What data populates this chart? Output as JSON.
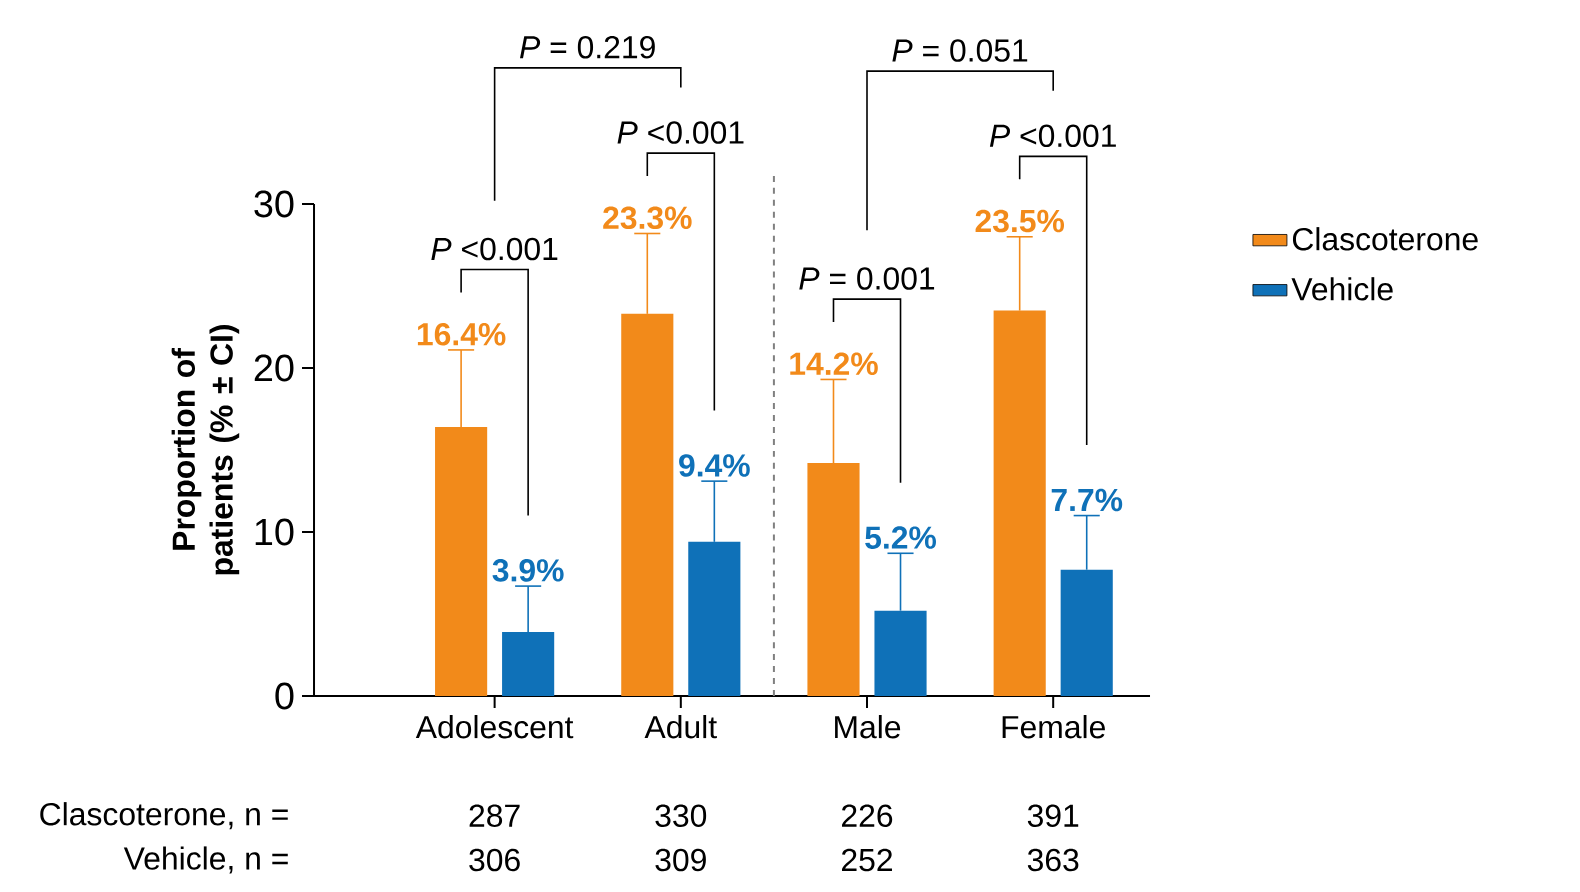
{
  "chart_data": {
    "type": "bar",
    "ylabel": "Proportion of patients (% ± CI)",
    "categories": [
      "Adolescent",
      "Adult",
      "Male",
      "Female"
    ],
    "series": [
      {
        "name": "Clascoterone",
        "color": "#f28a1a",
        "values": [
          16.4,
          23.3,
          14.2,
          23.5
        ],
        "errors": [
          [
            16.4,
            21.1
          ],
          [
            23.3,
            28.2
          ],
          [
            14.2,
            19.3
          ],
          [
            23.5,
            28.0
          ]
        ],
        "value_labels": [
          "16.4%",
          "23.3%",
          "14.2%",
          "23.5%"
        ]
      },
      {
        "name": "Vehicle",
        "color": "#0f71b8",
        "values": [
          3.9,
          9.4,
          5.2,
          7.7
        ],
        "errors": [
          [
            3.9,
            6.7
          ],
          [
            9.4,
            13.1
          ],
          [
            5.2,
            8.7
          ],
          [
            7.7,
            11.0
          ]
        ],
        "value_labels": [
          "3.9%",
          "9.4%",
          "5.2%",
          "7.7%"
        ]
      }
    ],
    "ylim": [
      0,
      30
    ],
    "yticks": [
      0,
      10,
      20,
      30
    ],
    "grid": false,
    "legend": "right",
    "annotations": [
      "*P* <0.001",
      "*P* <0.001",
      "*P* = 0.001",
      "*P* <0.001",
      "*P* = 0.219",
      "*P* = 0.051",
      "Clascoterone, n =",
      "287",
      "330",
      "226",
      "391",
      "Vehicle, n =",
      "306",
      "309",
      "252",
      "363"
    ]
  }
}
